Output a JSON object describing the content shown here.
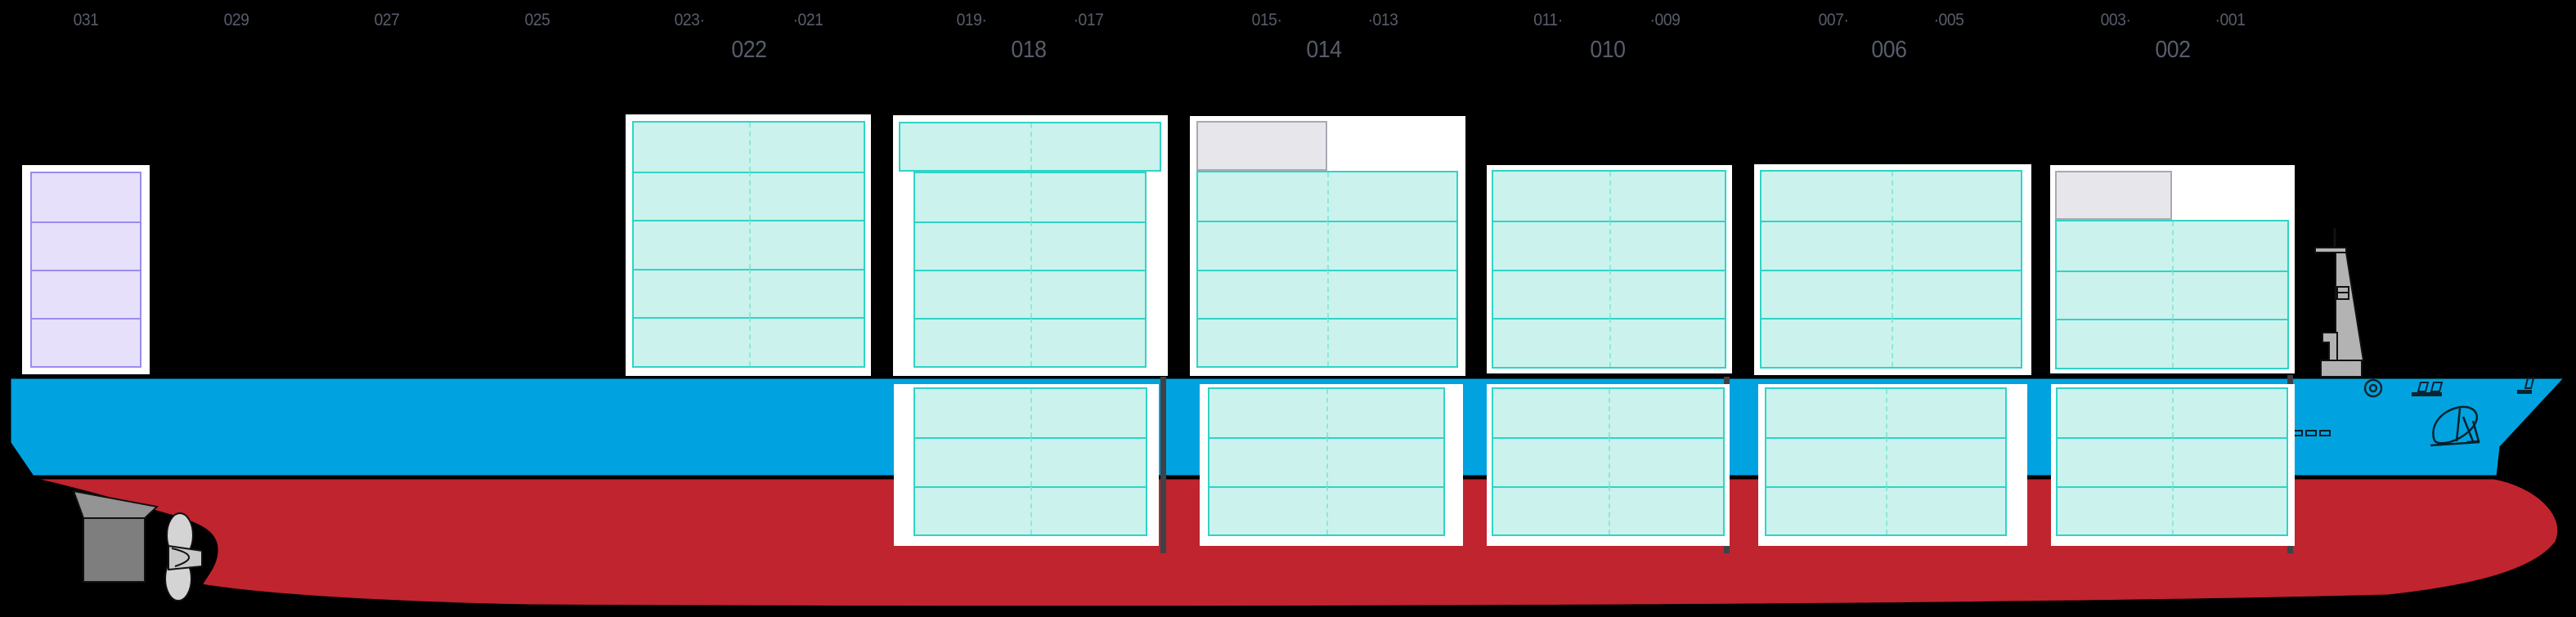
{
  "view": {
    "type": "vessel-side-profile-bay-plan"
  },
  "colors": {
    "background": "#000000",
    "hull_topside_blue": "#00a3e0",
    "hull_underwater_red": "#c0242e",
    "cell_fill_teal": "#cbf2ec",
    "cell_border_teal": "#2fd4c6",
    "cell_center_dash": "#8ce8dc",
    "cell_fill_gray": "#e7e6eb",
    "cell_border_gray": "#a9a9b4",
    "superstructure_fill": "#e6e0fa",
    "superstructure_border": "#998cf0",
    "frame_white": "#ffffff",
    "label_gray": "#575d6a",
    "bulkhead_dark": "#3e4247",
    "mast_gray": "#b3b3b3",
    "rudder_gray": "#8c8c8c",
    "propeller_gray": "#d2d2d2"
  },
  "bay_axis": {
    "small_labels": [
      "031",
      "029",
      "027",
      "025",
      "023·",
      "·021",
      "019·",
      "·017",
      "015·",
      "·013",
      "011·",
      "·009",
      "007·",
      "·005",
      "003·",
      "·001"
    ],
    "large_labels": [
      "022",
      "018",
      "014",
      "010",
      "006",
      "002"
    ]
  },
  "cell_states_legend": {
    "c": "teal-filled-slot",
    "g": "gray-filled-slot",
    "e": "empty-slot",
    "p": "lavender-filled-slot"
  },
  "blocks": {
    "block-031": {
      "kind": "superstructure",
      "tiers_above": [
        [
          "p"
        ],
        [
          "p"
        ],
        [
          "p"
        ],
        [
          "p"
        ]
      ],
      "tiers_below": []
    },
    "bay-022": {
      "kind": "bay",
      "tiers_above": [
        [
          "c",
          "c"
        ],
        [
          "c",
          "c"
        ],
        [
          "c",
          "c"
        ],
        [
          "c",
          "c"
        ],
        [
          "c",
          "c"
        ]
      ],
      "tiers_below": []
    },
    "bay-018": {
      "kind": "bay",
      "tiers_above": [
        [
          "c",
          "c"
        ],
        [
          "c",
          "c"
        ],
        [
          "c",
          "c"
        ],
        [
          "c",
          "c"
        ],
        [
          "c",
          "c"
        ]
      ],
      "tiers_below": [
        [
          "c",
          "c"
        ],
        [
          "c",
          "c"
        ],
        [
          "c",
          "c"
        ]
      ]
    },
    "bay-014": {
      "kind": "bay",
      "tiers_above": [
        [
          "g",
          "e"
        ],
        [
          "c",
          "c"
        ],
        [
          "c",
          "c"
        ],
        [
          "c",
          "c"
        ],
        [
          "c",
          "c"
        ]
      ],
      "tiers_below": [
        [
          "c",
          "c"
        ],
        [
          "c",
          "c"
        ],
        [
          "c",
          "c"
        ]
      ]
    },
    "bay-010": {
      "kind": "bay",
      "tiers_above": [
        [
          "c",
          "c"
        ],
        [
          "c",
          "c"
        ],
        [
          "c",
          "c"
        ],
        [
          "c",
          "c"
        ]
      ],
      "tiers_below": [
        [
          "c",
          "c"
        ],
        [
          "c",
          "c"
        ],
        [
          "c",
          "c"
        ]
      ]
    },
    "bay-006": {
      "kind": "bay",
      "tiers_above": [
        [
          "c",
          "c"
        ],
        [
          "c",
          "c"
        ],
        [
          "c",
          "c"
        ],
        [
          "c",
          "c"
        ]
      ],
      "tiers_below": [
        [
          "c",
          "c"
        ],
        [
          "c",
          "c"
        ],
        [
          "c",
          "c"
        ]
      ]
    },
    "bay-002": {
      "kind": "bay",
      "tiers_above": [
        [
          "g",
          "e"
        ],
        [
          "c",
          "c"
        ],
        [
          "c",
          "c"
        ],
        [
          "c",
          "c"
        ]
      ],
      "tiers_below": [
        [
          "c",
          "c"
        ],
        [
          "c",
          "c"
        ],
        [
          "c",
          "c"
        ]
      ]
    }
  }
}
